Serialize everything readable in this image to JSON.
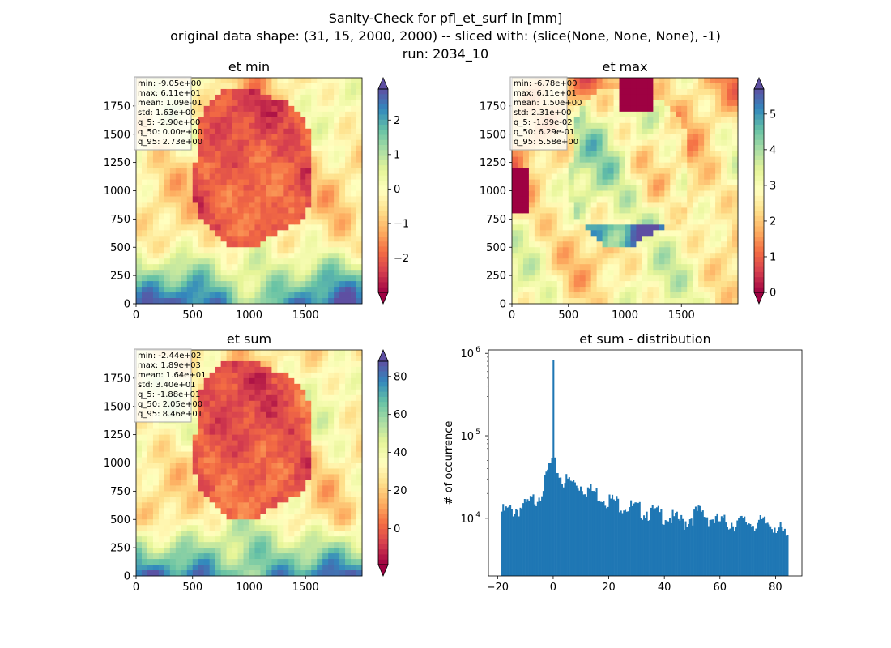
{
  "figure": {
    "suptitle_lines": [
      "Sanity-Check for pfl_et_surf in [mm]",
      "original data shape: (31, 15, 2000, 2000) -- sliced with: (slice(None, None, None), -1)",
      "run: 2034_10"
    ]
  },
  "chart_data": [
    {
      "type": "heatmap",
      "title": "et min",
      "xlim": [
        0,
        2000
      ],
      "ylim": [
        0,
        2000
      ],
      "x_ticks": [
        0,
        500,
        1000,
        1500
      ],
      "y_ticks": [
        0,
        250,
        500,
        750,
        1000,
        1250,
        1500,
        1750
      ],
      "colormap": "Spectral",
      "colorbar": {
        "range": [
          -3,
          2.9
        ],
        "ticks": [
          -2,
          -1,
          0,
          1,
          2
        ],
        "extend": "both"
      },
      "stats": [
        "min: -9.05e+00",
        "max: 6.11e+01",
        "mean: 1.09e-01",
        "std: 1.63e+00",
        "q_5: -2.90e+00",
        "q_50: 0.00e+00",
        "q_95: 2.73e+00"
      ]
    },
    {
      "type": "heatmap",
      "title": "et max",
      "xlim": [
        0,
        2000
      ],
      "ylim": [
        0,
        2000
      ],
      "x_ticks": [
        0,
        500,
        1000,
        1500
      ],
      "y_ticks": [
        0,
        250,
        500,
        750,
        1000,
        1250,
        1500,
        1750
      ],
      "colormap": "Spectral",
      "colorbar": {
        "range": [
          0,
          5.7
        ],
        "ticks": [
          0,
          1,
          2,
          3,
          4,
          5
        ],
        "extend": "both"
      },
      "stats": [
        "min: -6.78e+00",
        "max: 6.11e+01",
        "mean: 1.50e+00",
        "std: 2.31e+00",
        "q_5: -1.99e-02",
        "q_50: 6.29e-01",
        "q_95: 5.58e+00"
      ]
    },
    {
      "type": "heatmap",
      "title": "et sum",
      "xlim": [
        0,
        2000
      ],
      "ylim": [
        0,
        2000
      ],
      "x_ticks": [
        0,
        500,
        1000,
        1500
      ],
      "y_ticks": [
        0,
        250,
        500,
        750,
        1000,
        1250,
        1500,
        1750
      ],
      "colormap": "Spectral",
      "colorbar": {
        "range": [
          -19,
          88
        ],
        "ticks": [
          0,
          20,
          40,
          60,
          80
        ],
        "extend": "both"
      },
      "stats": [
        "min: -2.44e+02",
        "max: 1.89e+03",
        "mean: 1.64e+01",
        "std: 3.40e+01",
        "q_5: -1.88e+01",
        "q_50: 2.05e+00",
        "q_95: 8.46e+01"
      ]
    },
    {
      "type": "bar",
      "title": "et sum - distribution",
      "xlabel": "",
      "ylabel": "# of occurrence",
      "yscale": "log",
      "xlim": [
        -23.3,
        89.5
      ],
      "ylim": [
        2000,
        1100000
      ],
      "x_ticks": [
        -20,
        0,
        20,
        40,
        60,
        80
      ],
      "y_ticks": [
        10000,
        100000,
        1000000
      ],
      "y_tick_labels": [
        "10^4",
        "10^5",
        "10^6"
      ],
      "bar_color": "#1f77b4",
      "bins": {
        "start": -18.8,
        "end": 84.6,
        "width": 0.517
      },
      "counts_sketch": [
        {
          "x": -18.8,
          "y": 12000
        },
        {
          "x": -15,
          "y": 12500
        },
        {
          "x": -10,
          "y": 14000
        },
        {
          "x": -6,
          "y": 18000
        },
        {
          "x": -3,
          "y": 27000
        },
        {
          "x": -1.5,
          "y": 42000
        },
        {
          "x": -0.3,
          "y": 48000
        },
        {
          "x": 0,
          "y": 820000
        },
        {
          "x": 0.5,
          "y": 45000
        },
        {
          "x": 3,
          "y": 30000
        },
        {
          "x": 10,
          "y": 25000
        },
        {
          "x": 20,
          "y": 17000
        },
        {
          "x": 30,
          "y": 13000
        },
        {
          "x": 40,
          "y": 11000
        },
        {
          "x": 47,
          "y": 9000
        },
        {
          "x": 52,
          "y": 12000
        },
        {
          "x": 60,
          "y": 9000
        },
        {
          "x": 70,
          "y": 9000
        },
        {
          "x": 80,
          "y": 8500
        },
        {
          "x": 84.6,
          "y": 5500
        }
      ]
    }
  ]
}
